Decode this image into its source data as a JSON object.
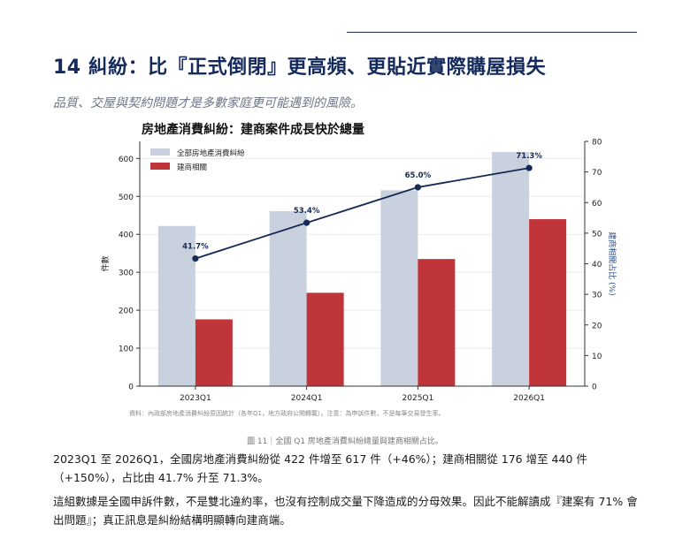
{
  "page": {
    "section_number": "14",
    "section_title": "糾紛：比『正式倒閉』更高頻、更貼近實際購屋損失",
    "subtitle": "品質、交屋與契約問題才是多數家庭更可能遇到的風險。",
    "figure_caption": "圖 11｜全國 Q1 房地產消費糾紛總量與建商相關占比。",
    "paragraph1": "2023Q1 至 2026Q1，全國房地產消費糾紛從 422 件增至 617 件（+46%）；建商相關從 176 增至 440 件（+150%），占比由 41.7% 升至 71.3%。",
    "paragraph2": "這組數據是全國申訴件數，不是雙北違約率，也沒有控制成交量下降造成的分母效果。因此不能解讀成『建案有 71% 會出問題』；真正訊息是糾紛結構明顯轉向建商端。"
  },
  "chart_data": {
    "type": "bar",
    "title": "房地產消費糾紛：建商案件成長快於總量",
    "categories": [
      "2023Q1",
      "2024Q1",
      "2025Q1",
      "2026Q1"
    ],
    "series": [
      {
        "name": "全部房地產消費糾紛",
        "type": "bar",
        "axis": "left",
        "color": "#c8d1dd",
        "values": [
          422,
          461,
          516,
          617
        ]
      },
      {
        "name": "建商相關",
        "type": "bar",
        "axis": "left",
        "color": "#c0353a",
        "values": [
          176,
          246,
          335,
          440
        ]
      },
      {
        "type": "line",
        "axis": "right",
        "color": "#152a57",
        "values": [
          41.7,
          53.4,
          65.0,
          71.3
        ],
        "labels": [
          "41.7%",
          "53.4%",
          "65.0%",
          "71.3%"
        ]
      }
    ],
    "ylabel": "件數",
    "ylabel_right": "建商相關占比 (%)",
    "ylim": [
      0,
      645
    ],
    "yticks": [
      0,
      100,
      200,
      300,
      400,
      500,
      600
    ],
    "ylim_right": [
      0,
      80
    ],
    "yticks_right": [
      0,
      10,
      20,
      30,
      40,
      50,
      60,
      70,
      80
    ],
    "source_note": "資料：內政部房地產消費糾紛原因統計（各年Q1，地方政府公開轉載）。注意：為申訴件數，不是每筆交易發生率。",
    "legend_position": "top-left",
    "grid": "horizontal"
  }
}
